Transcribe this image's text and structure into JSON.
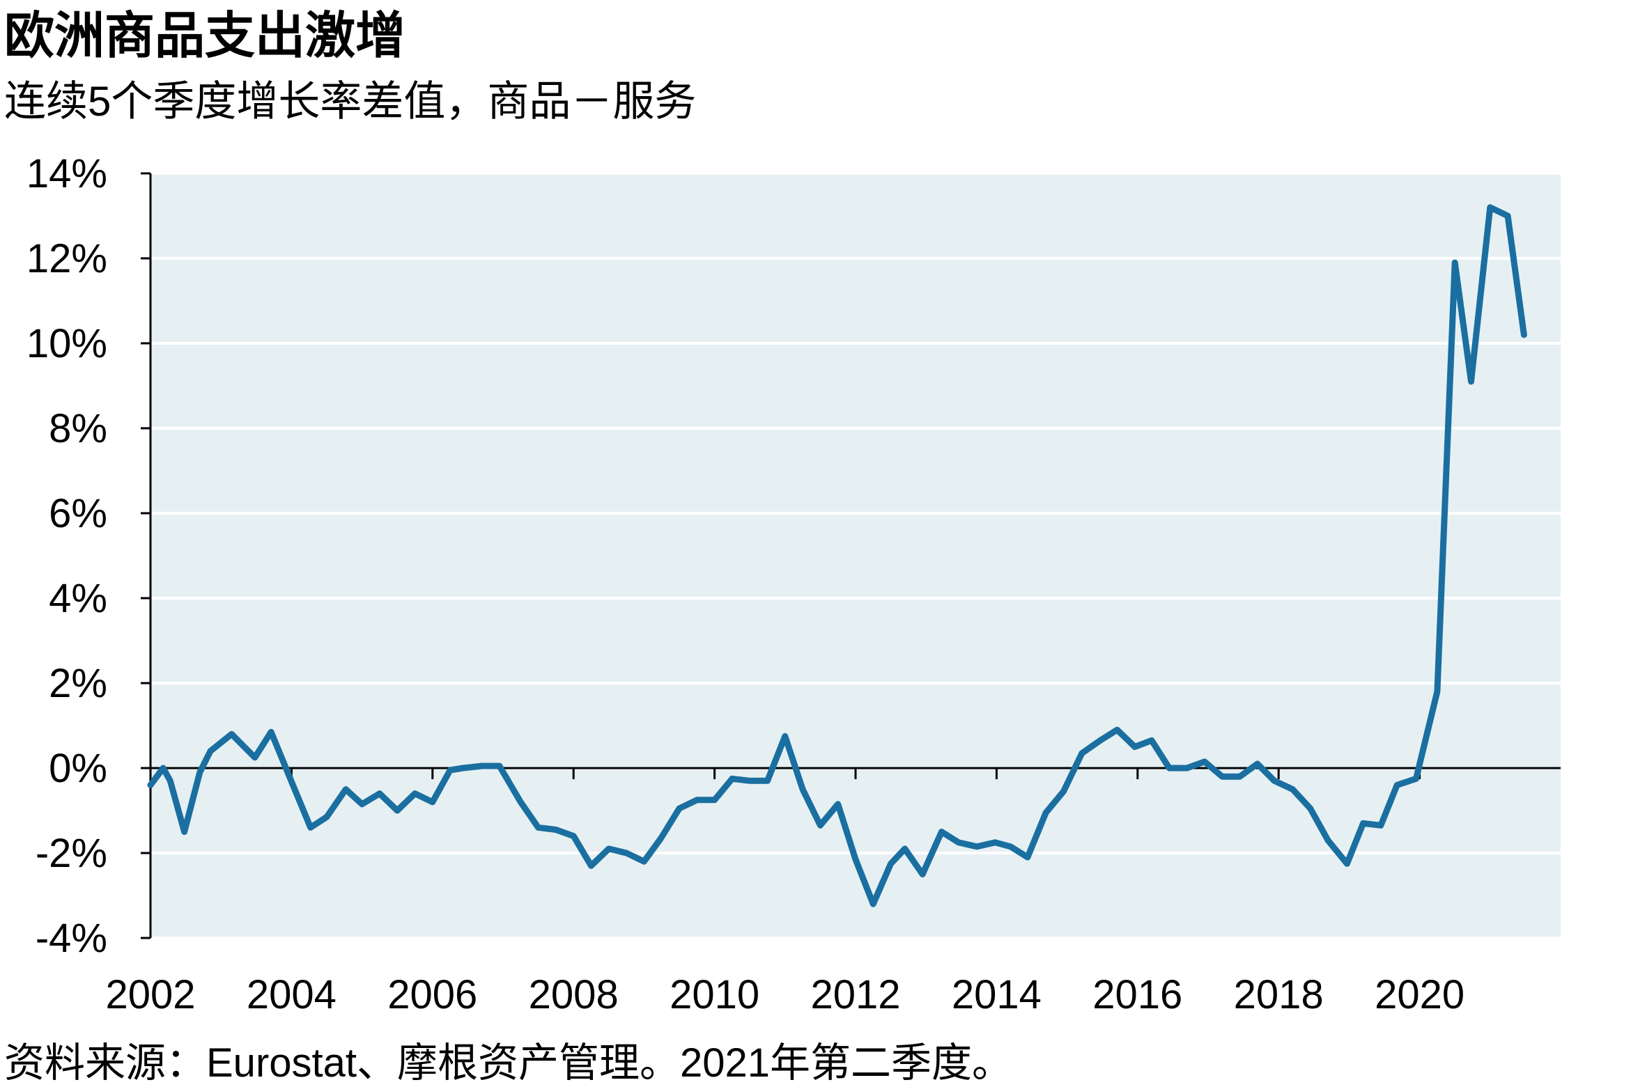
{
  "chart_data": {
    "type": "line",
    "title": "欧洲商品支出激增",
    "subtitle": "连续5个季度增长率差值，商品－服务",
    "source": "资料来源：Eurostat、摩根资产管理。2021年第二季度。",
    "x": [
      2002.0,
      2002.18,
      2002.28,
      2002.48,
      2002.7,
      2002.85,
      2003.15,
      2003.48,
      2003.71,
      2003.97,
      2004.27,
      2004.5,
      2004.77,
      2005.0,
      2005.25,
      2005.5,
      2005.75,
      2006.0,
      2006.25,
      2006.43,
      2006.7,
      2006.95,
      2007.25,
      2007.5,
      2007.75,
      2008.0,
      2008.25,
      2008.5,
      2008.75,
      2009.0,
      2009.24,
      2009.5,
      2009.75,
      2010.0,
      2010.25,
      2010.5,
      2010.75,
      2011.0,
      2011.25,
      2011.5,
      2011.75,
      2012.0,
      2012.25,
      2012.5,
      2012.7,
      2012.95,
      2013.22,
      2013.46,
      2013.72,
      2013.98,
      2014.2,
      2014.44,
      2014.7,
      2014.95,
      2015.21,
      2015.47,
      2015.71,
      2015.96,
      2016.2,
      2016.45,
      2016.7,
      2016.95,
      2017.2,
      2017.45,
      2017.7,
      2017.94,
      2018.2,
      2018.45,
      2018.7,
      2018.97,
      2019.2,
      2019.45,
      2019.68,
      2019.95,
      2020.25,
      2020.5,
      2020.73,
      2021.0,
      2021.25,
      2021.48
    ],
    "values": [
      -0.4,
      0.0,
      -0.3,
      -1.5,
      -0.1,
      0.4,
      0.8,
      0.25,
      0.85,
      -0.2,
      -1.4,
      -1.15,
      -0.5,
      -0.85,
      -0.6,
      -1.0,
      -0.6,
      -0.8,
      -0.05,
      0.0,
      0.05,
      0.05,
      -0.8,
      -1.4,
      -1.45,
      -1.6,
      -2.3,
      -1.9,
      -2.0,
      -2.2,
      -1.65,
      -0.95,
      -0.75,
      -0.75,
      -0.25,
      -0.3,
      -0.3,
      0.75,
      -0.5,
      -1.35,
      -0.85,
      -2.15,
      -3.2,
      -2.25,
      -1.9,
      -2.5,
      -1.5,
      -1.75,
      -1.85,
      -1.75,
      -1.85,
      -2.1,
      -1.05,
      -0.55,
      0.35,
      0.65,
      0.9,
      0.5,
      0.65,
      0.0,
      0.0,
      0.15,
      -0.2,
      -0.2,
      0.1,
      -0.3,
      -0.5,
      -0.95,
      -1.7,
      -2.25,
      -1.3,
      -1.35,
      -0.4,
      -0.25,
      1.8,
      11.9,
      9.1,
      13.2,
      13.0,
      10.2
    ],
    "color": "#1a6fa0",
    "xlim": [
      2002,
      2022
    ],
    "xticks": [
      2002,
      2004,
      2006,
      2008,
      2010,
      2012,
      2014,
      2016,
      2018,
      2020
    ],
    "ylim": [
      -4,
      14
    ],
    "yticks": [
      {
        "value": -4,
        "label": "-4%"
      },
      {
        "value": -2,
        "label": "-2%"
      },
      {
        "value": 0,
        "label": "0%"
      },
      {
        "value": 2,
        "label": "2%"
      },
      {
        "value": 4,
        "label": "4%"
      },
      {
        "value": 6,
        "label": "6%"
      },
      {
        "value": 8,
        "label": "8%"
      },
      {
        "value": 10,
        "label": "10%"
      },
      {
        "value": 12,
        "label": "12%"
      },
      {
        "value": 14,
        "label": "14%"
      }
    ],
    "grid": true
  }
}
